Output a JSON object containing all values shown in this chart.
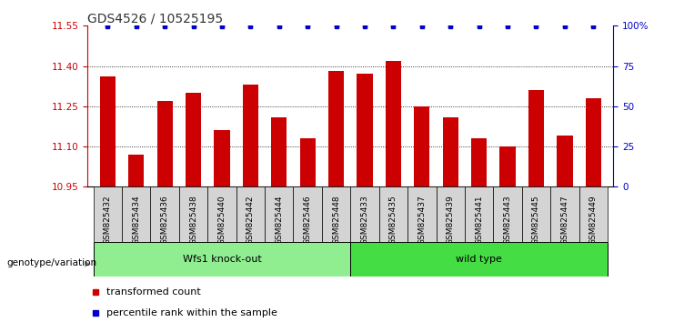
{
  "title": "GDS4526 / 10525195",
  "categories": [
    "GSM825432",
    "GSM825434",
    "GSM825436",
    "GSM825438",
    "GSM825440",
    "GSM825442",
    "GSM825444",
    "GSM825446",
    "GSM825448",
    "GSM825433",
    "GSM825435",
    "GSM825437",
    "GSM825439",
    "GSM825441",
    "GSM825443",
    "GSM825445",
    "GSM825447",
    "GSM825449"
  ],
  "bar_values": [
    11.36,
    11.07,
    11.27,
    11.3,
    11.16,
    11.33,
    11.21,
    11.13,
    11.38,
    11.37,
    11.42,
    11.25,
    11.21,
    11.13,
    11.1,
    11.31,
    11.14,
    11.28
  ],
  "percentile_values": [
    100,
    100,
    100,
    100,
    100,
    100,
    100,
    100,
    100,
    100,
    100,
    100,
    100,
    100,
    100,
    100,
    100,
    100
  ],
  "bar_color": "#cc0000",
  "percentile_color": "#0000cc",
  "ylim_left": [
    10.95,
    11.55
  ],
  "ylim_right": [
    0,
    100
  ],
  "yticks_left": [
    10.95,
    11.1,
    11.25,
    11.4,
    11.55
  ],
  "yticks_right": [
    0,
    25,
    50,
    75,
    100
  ],
  "groups": [
    {
      "label": "Wfs1 knock-out",
      "start": 0,
      "end": 9,
      "color": "#90ee90"
    },
    {
      "label": "wild type",
      "start": 9,
      "end": 18,
      "color": "#44dd44"
    }
  ],
  "group_label_prefix": "genotype/variation",
  "legend_items": [
    {
      "label": "transformed count",
      "color": "#cc0000"
    },
    {
      "label": "percentile rank within the sample",
      "color": "#0000cc"
    }
  ],
  "grid_color": "#000000",
  "bg_color": "#ffffff",
  "title_fontsize": 10,
  "tick_fontsize": 7.5,
  "bar_width": 0.55
}
